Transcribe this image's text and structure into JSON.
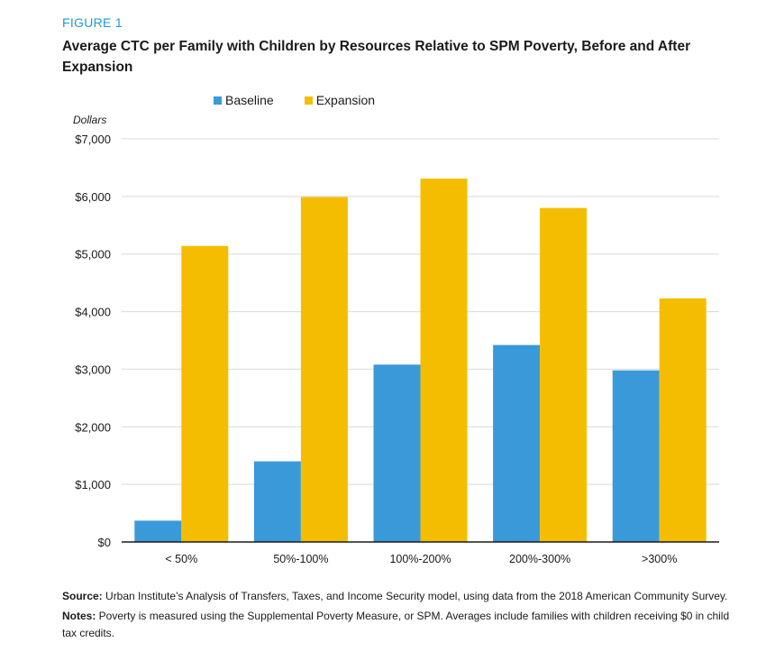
{
  "figure_label": "FIGURE 1",
  "title": "Average CTC per Family with Children by Resources Relative to SPM Poverty, Before and After Expansion",
  "legend": [
    {
      "name": "Baseline",
      "color": "#3a9ad9"
    },
    {
      "name": "Expansion",
      "color": "#f5bd00"
    }
  ],
  "chart_data": {
    "type": "bar",
    "title": "Average CTC per Family with Children by Resources Relative to SPM Poverty, Before and After Expansion",
    "ylabel": "Dollars",
    "xlabel": "",
    "categories": [
      "< 50%",
      "50%-100%",
      "100%-200%",
      "200%-300%",
      ">300%"
    ],
    "series": [
      {
        "name": "Baseline",
        "color": "#3a9ad9",
        "values": [
          370,
          1400,
          3080,
          3420,
          2980
        ]
      },
      {
        "name": "Expansion",
        "color": "#f5bd00",
        "values": [
          5140,
          5990,
          6310,
          5800,
          4230
        ]
      }
    ],
    "ylim": [
      0,
      7000
    ],
    "yticks": [
      0,
      1000,
      2000,
      3000,
      4000,
      5000,
      6000,
      7000
    ],
    "ytick_labels": [
      "$0",
      "$1,000",
      "$2,000",
      "$3,000",
      "$4,000",
      "$5,000",
      "$6,000",
      "$7,000"
    ],
    "grid": true,
    "legend_position": "top"
  },
  "source_label": "Source:",
  "source_text": " Urban Institute’s Analysis of Transfers, Taxes, and Income Security model, using data from the 2018 American Community Survey.",
  "notes_label": "Notes:",
  "notes_text": " Poverty is measured using the Supplemental Poverty Measure, or SPM. Averages include families with children receiving $0 in child tax credits."
}
